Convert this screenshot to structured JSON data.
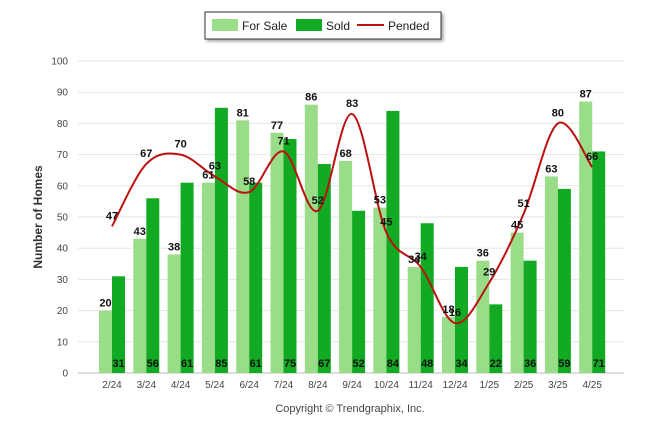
{
  "chart_data": {
    "type": "bar",
    "categories": [
      "2/24",
      "3/24",
      "4/24",
      "5/24",
      "6/24",
      "7/24",
      "8/24",
      "9/24",
      "10/24",
      "11/24",
      "12/24",
      "1/25",
      "2/25",
      "3/25",
      "4/25"
    ],
    "series": [
      {
        "name": "For Sale",
        "type": "bar",
        "color": "#99dd88",
        "values": [
          20,
          43,
          38,
          61,
          81,
          77,
          86,
          68,
          53,
          34,
          18,
          36,
          45,
          63,
          87
        ]
      },
      {
        "name": "Sold",
        "type": "bar",
        "color": "#11aa22",
        "values": [
          31,
          56,
          61,
          85,
          61,
          75,
          67,
          52,
          84,
          48,
          34,
          22,
          36,
          59,
          71
        ]
      },
      {
        "name": "Pended",
        "type": "line",
        "color": "#bb1111",
        "values": [
          47,
          67,
          70,
          63,
          58,
          71,
          52,
          83,
          45,
          34,
          16,
          29,
          51,
          80,
          66
        ]
      }
    ],
    "ylabel": "Number of Homes",
    "ylim": [
      0,
      100
    ],
    "yticks": [
      0,
      10,
      20,
      30,
      40,
      50,
      60,
      70,
      80,
      90,
      100
    ],
    "grid": true,
    "legend": "top-center",
    "footer": "Copyright © Trendgraphix, Inc."
  }
}
